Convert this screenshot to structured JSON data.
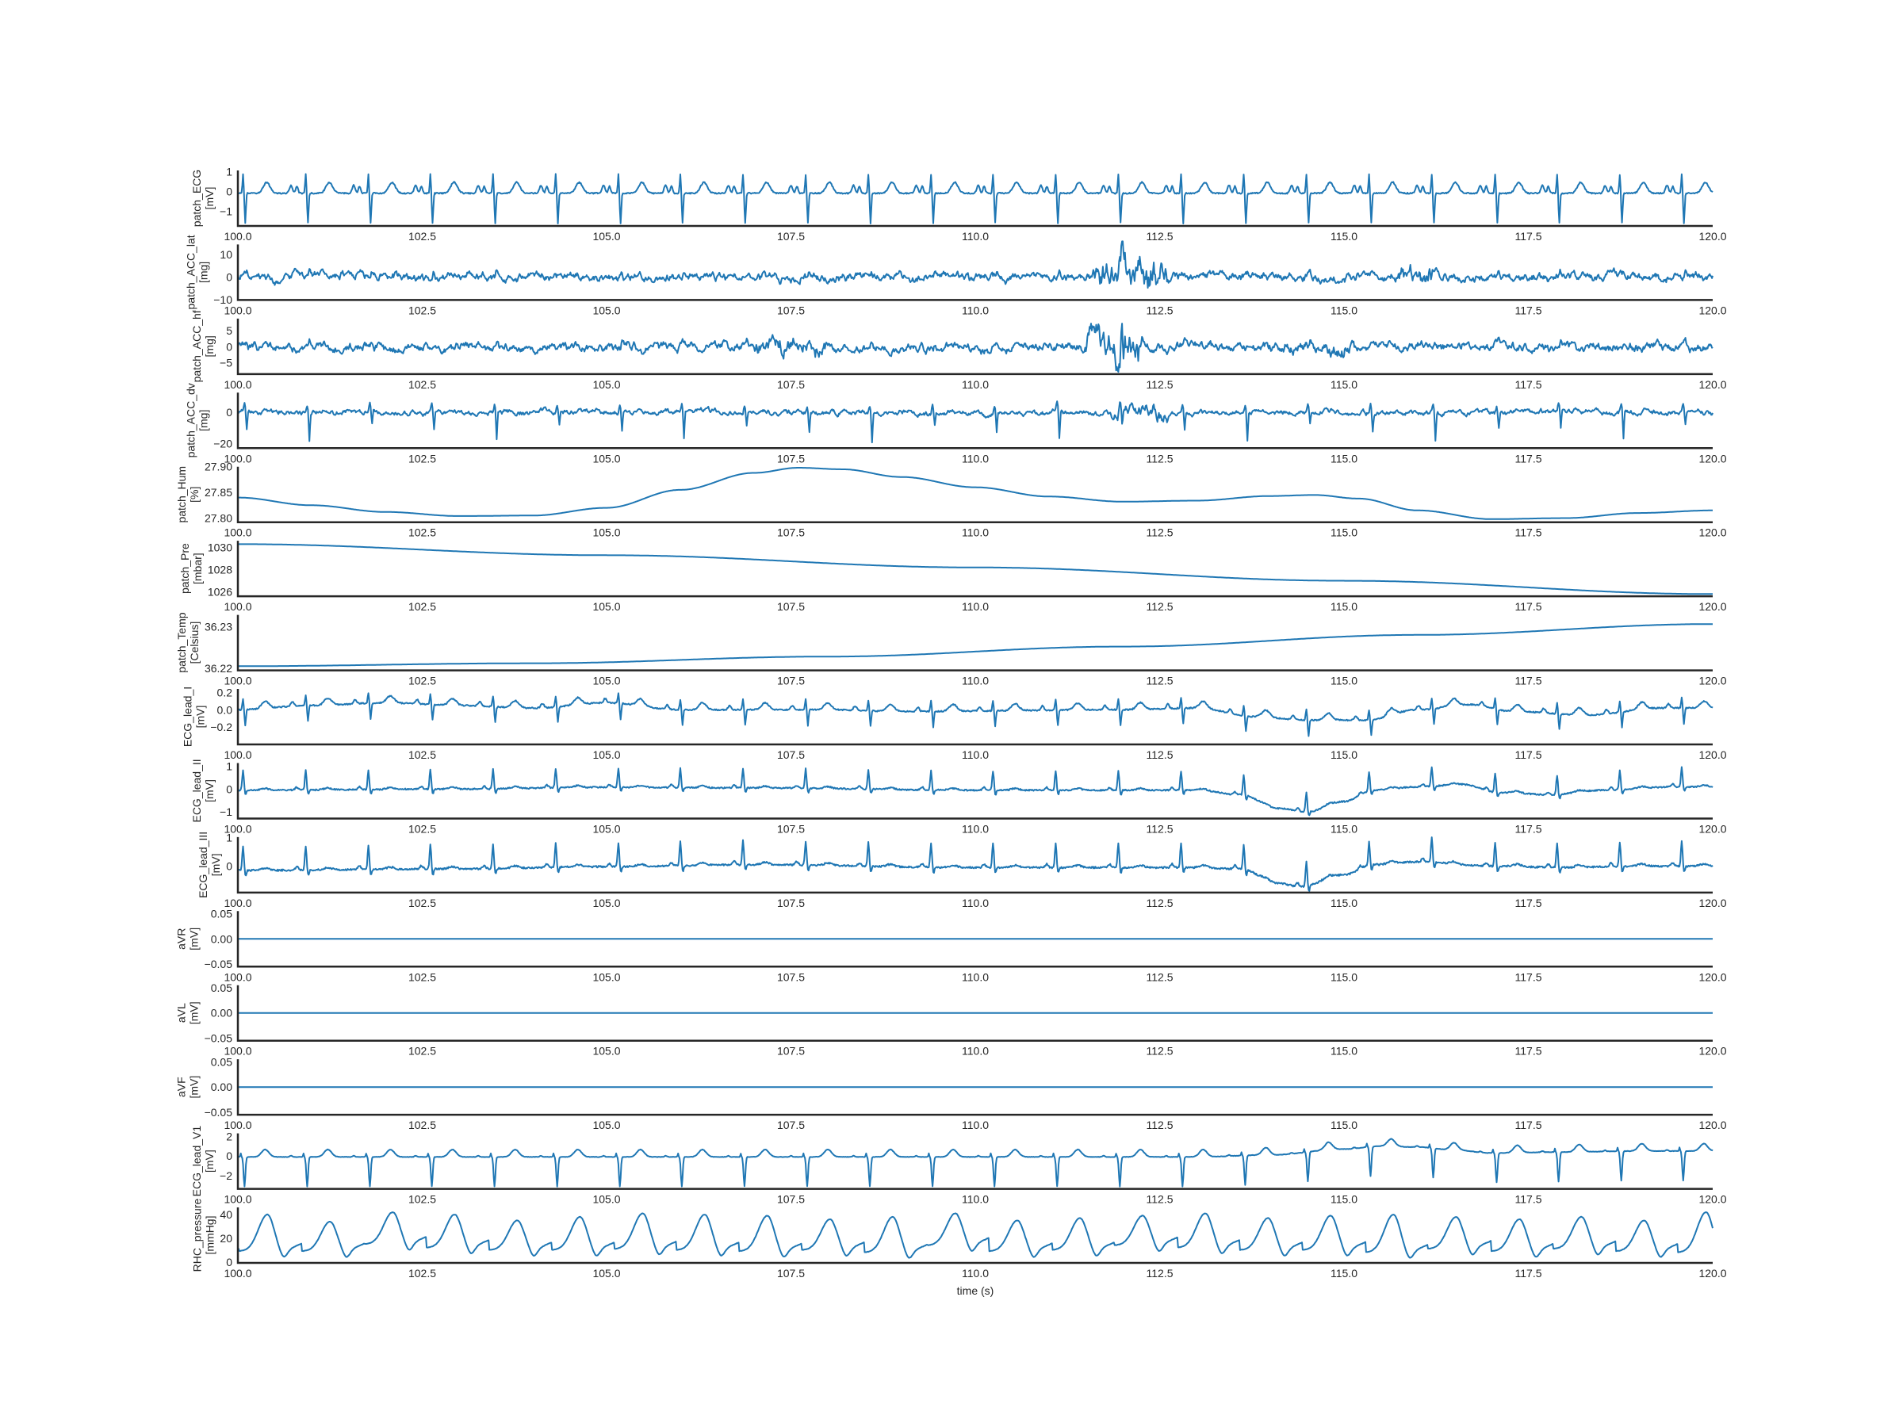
{
  "chart_data": {
    "type": "line",
    "layout": "15 stacked panels sharing time axis",
    "xlabel": "time (s)",
    "xlim": [
      100.0,
      120.0
    ],
    "xticks": [
      "100.0",
      "102.5",
      "105.0",
      "107.5",
      "110.0",
      "112.5",
      "115.0",
      "117.5",
      "120.0"
    ],
    "grid": false,
    "line_color": "#1f77b4",
    "beat_times": [
      100.07,
      100.92,
      101.77,
      102.61,
      103.46,
      104.31,
      105.16,
      106.0,
      106.85,
      107.7,
      108.55,
      109.4,
      110.24,
      111.09,
      111.94,
      112.79,
      113.64,
      114.49,
      115.34,
      116.19,
      117.05,
      117.89,
      118.74,
      119.58
    ],
    "panels": [
      {
        "name": "patch_ECG",
        "unit": "[mV]",
        "ylim": [
          -1.75,
          1.05
        ],
        "yticks": [
          1,
          0,
          -1
        ],
        "ytick_labels": [
          "1",
          "0",
          "−1"
        ],
        "kind": "ecg_patch"
      },
      {
        "name": "patch_ACC_lat",
        "unit": "[mg]",
        "ylim": [
          -10.2,
          14.5
        ],
        "yticks": [
          10,
          0,
          -10
        ],
        "ytick_labels": [
          "10",
          "0",
          "−10"
        ],
        "kind": "acc",
        "amplitude": 2.5,
        "bursts": [
          [
            111.6,
            112.6,
            9
          ],
          [
            115.7,
            116.2,
            6
          ]
        ]
      },
      {
        "name": "patch_ACC_hf",
        "unit": "[mg]",
        "ylim": [
          -8.5,
          8.7
        ],
        "yticks": [
          5,
          0,
          -5
        ],
        "ytick_labels": [
          "5",
          "0",
          "−5"
        ],
        "kind": "acc",
        "amplitude": 1.8,
        "bursts": [
          [
            107.0,
            108.0,
            3.5
          ],
          [
            111.5,
            112.3,
            7
          ],
          [
            114.2,
            115.2,
            3
          ]
        ]
      },
      {
        "name": "patch_ACC_dv",
        "unit": "[mg]",
        "ylim": [
          -22.8,
          12.5
        ],
        "yticks": [
          0,
          -20
        ],
        "ytick_labels": [
          "0",
          "−20"
        ],
        "kind": "acc_dv",
        "amplitude": 2.2,
        "bursts": [
          [
            111.8,
            112.6,
            6
          ]
        ]
      },
      {
        "name": "patch_Hum",
        "unit": "[%]",
        "ylim": [
          27.792,
          27.9
        ],
        "yticks": [
          27.9,
          27.85,
          27.8
        ],
        "ytick_labels": [
          "27.90",
          "27.85",
          "27.80"
        ],
        "kind": "smooth",
        "samples": [
          [
            100,
            27.84
          ],
          [
            101,
            27.825
          ],
          [
            102,
            27.812
          ],
          [
            103,
            27.804
          ],
          [
            104,
            27.805
          ],
          [
            105,
            27.82
          ],
          [
            106,
            27.855
          ],
          [
            107,
            27.888
          ],
          [
            107.6,
            27.898
          ],
          [
            108.2,
            27.895
          ],
          [
            109,
            27.88
          ],
          [
            110,
            27.86
          ],
          [
            111,
            27.842
          ],
          [
            112,
            27.832
          ],
          [
            113,
            27.834
          ],
          [
            114,
            27.843
          ],
          [
            114.6,
            27.845
          ],
          [
            115.2,
            27.838
          ],
          [
            116,
            27.815
          ],
          [
            117,
            27.798
          ],
          [
            118,
            27.8
          ],
          [
            119,
            27.81
          ],
          [
            120,
            27.815
          ]
        ]
      },
      {
        "name": "patch_Pre",
        "unit": "[mbar]",
        "ylim": [
          1025.6,
          1030.6
        ],
        "yticks": [
          1030,
          1028,
          1026
        ],
        "ytick_labels": [
          "1030",
          "1028",
          "1026"
        ],
        "kind": "smooth",
        "samples": [
          [
            100,
            1030.3
          ],
          [
            105,
            1029.3
          ],
          [
            110,
            1028.2
          ],
          [
            115,
            1027.0
          ],
          [
            120,
            1025.8
          ]
        ]
      },
      {
        "name": "patch_Temp",
        "unit": "[Celsius]",
        "ylim": [
          36.2195,
          36.2328
        ],
        "yticks": [
          36.23,
          36.22
        ],
        "ytick_labels": [
          "36.23",
          "36.22"
        ],
        "kind": "smooth",
        "samples": [
          [
            100,
            36.2205
          ],
          [
            104,
            36.2212
          ],
          [
            108,
            36.2228
          ],
          [
            112,
            36.2252
          ],
          [
            116,
            36.228
          ],
          [
            120,
            36.2306
          ]
        ]
      },
      {
        "name": "ECG_lead_I",
        "unit": "[mV]",
        "ylim": [
          -0.4,
          0.24
        ],
        "yticks": [
          0.2,
          0.0,
          -0.2
        ],
        "ytick_labels": [
          "0.2",
          "0.0",
          "−0.2"
        ],
        "kind": "ecg_I",
        "baseline": [
          [
            100,
            0.0
          ],
          [
            101,
            0.05
          ],
          [
            102,
            0.08
          ],
          [
            103,
            0.05
          ],
          [
            104,
            0.02
          ],
          [
            105,
            0.08
          ],
          [
            106,
            0.0
          ],
          [
            108,
            0.0
          ],
          [
            109,
            -0.02
          ],
          [
            112,
            0.0
          ],
          [
            113,
            0.02
          ],
          [
            113.8,
            -0.08
          ],
          [
            114.5,
            -0.12
          ],
          [
            115.3,
            -0.12
          ],
          [
            116,
            0.0
          ],
          [
            116.7,
            0.06
          ],
          [
            117.3,
            -0.02
          ],
          [
            118.3,
            -0.06
          ],
          [
            119.3,
            0.02
          ],
          [
            120,
            0.02
          ]
        ]
      },
      {
        "name": "ECG_lead_II",
        "unit": "[mV]",
        "ylim": [
          -1.3,
          1.15
        ],
        "yticks": [
          1,
          0,
          -1
        ],
        "ytick_labels": [
          "1",
          "0",
          "−1"
        ],
        "kind": "ecg_II",
        "baseline": [
          [
            100,
            -0.05
          ],
          [
            103,
            0.0
          ],
          [
            105,
            0.08
          ],
          [
            107,
            0.05
          ],
          [
            110,
            -0.05
          ],
          [
            113,
            -0.05
          ],
          [
            113.6,
            -0.25
          ],
          [
            114.1,
            -0.85
          ],
          [
            114.5,
            -1.0
          ],
          [
            115,
            -0.55
          ],
          [
            115.4,
            -0.05
          ],
          [
            116,
            0.1
          ],
          [
            116.6,
            0.2
          ],
          [
            117.1,
            -0.15
          ],
          [
            117.8,
            -0.25
          ],
          [
            118.5,
            -0.05
          ],
          [
            119.5,
            0.1
          ],
          [
            120,
            0.1
          ]
        ]
      },
      {
        "name": "ECG_lead_III",
        "unit": "[mV]",
        "ylim": [
          -0.93,
          1.02
        ],
        "yticks": [
          1,
          0
        ],
        "ytick_labels": [
          "1",
          "0"
        ],
        "kind": "ecg_III",
        "baseline": [
          [
            100,
            -0.15
          ],
          [
            103,
            -0.1
          ],
          [
            105,
            -0.02
          ],
          [
            107,
            0.05
          ],
          [
            110,
            -0.05
          ],
          [
            113,
            -0.05
          ],
          [
            113.6,
            -0.1
          ],
          [
            114.1,
            -0.6
          ],
          [
            114.4,
            -0.72
          ],
          [
            115,
            -0.3
          ],
          [
            115.4,
            0.05
          ],
          [
            116,
            0.15
          ],
          [
            117,
            0.0
          ],
          [
            118,
            -0.05
          ],
          [
            119,
            0.0
          ],
          [
            120,
            0.0
          ]
        ]
      },
      {
        "name": "aVR",
        "unit": "[mV]",
        "ylim": [
          -0.055,
          0.055
        ],
        "yticks": [
          0.05,
          0.0,
          -0.05
        ],
        "ytick_labels": [
          "0.05",
          "0.00",
          "−0.05"
        ],
        "kind": "flat",
        "value": 0.0
      },
      {
        "name": "aVL",
        "unit": "[mV]",
        "ylim": [
          -0.055,
          0.055
        ],
        "yticks": [
          0.05,
          0.0,
          -0.05
        ],
        "ytick_labels": [
          "0.05",
          "0.00",
          "−0.05"
        ],
        "kind": "flat",
        "value": 0.0
      },
      {
        "name": "aVF",
        "unit": "[mV]",
        "ylim": [
          -0.055,
          0.055
        ],
        "yticks": [
          0.05,
          0.0,
          -0.05
        ],
        "ytick_labels": [
          "0.05",
          "0.00",
          "−0.05"
        ],
        "kind": "flat",
        "value": 0.0
      },
      {
        "name": "ECG_lead_V1",
        "unit": "[mV]",
        "ylim": [
          -3.35,
          2.3
        ],
        "yticks": [
          2,
          0,
          -2
        ],
        "ytick_labels": [
          "2",
          "0",
          "−2"
        ],
        "kind": "ecg_V1",
        "baseline": [
          [
            100,
            0.0
          ],
          [
            113,
            0.0
          ],
          [
            114,
            0.2
          ],
          [
            115,
            0.8
          ],
          [
            115.5,
            1.1
          ],
          [
            116,
            1.0
          ],
          [
            116.5,
            0.7
          ],
          [
            117,
            0.4
          ],
          [
            118,
            0.5
          ],
          [
            119,
            0.6
          ],
          [
            120,
            0.6
          ]
        ]
      },
      {
        "name": "RHC_pressure",
        "unit": "[mmHg]",
        "ylim": [
          -0.8,
          46
        ],
        "yticks": [
          40,
          20,
          0
        ],
        "ytick_labels": [
          "40",
          "20",
          "0"
        ],
        "kind": "rhc",
        "peak_values": [
          40,
          34,
          42,
          40,
          35,
          38,
          41,
          40,
          39,
          36,
          38,
          41,
          35,
          37,
          39,
          41,
          37,
          39,
          40,
          38,
          36,
          38,
          35,
          42
        ],
        "trough_values": [
          3,
          3,
          9,
          6,
          4,
          4,
          5,
          4,
          3,
          4,
          2,
          8,
          3,
          4,
          8,
          6,
          4,
          4,
          2,
          5,
          3,
          5,
          3,
          2
        ]
      }
    ]
  }
}
